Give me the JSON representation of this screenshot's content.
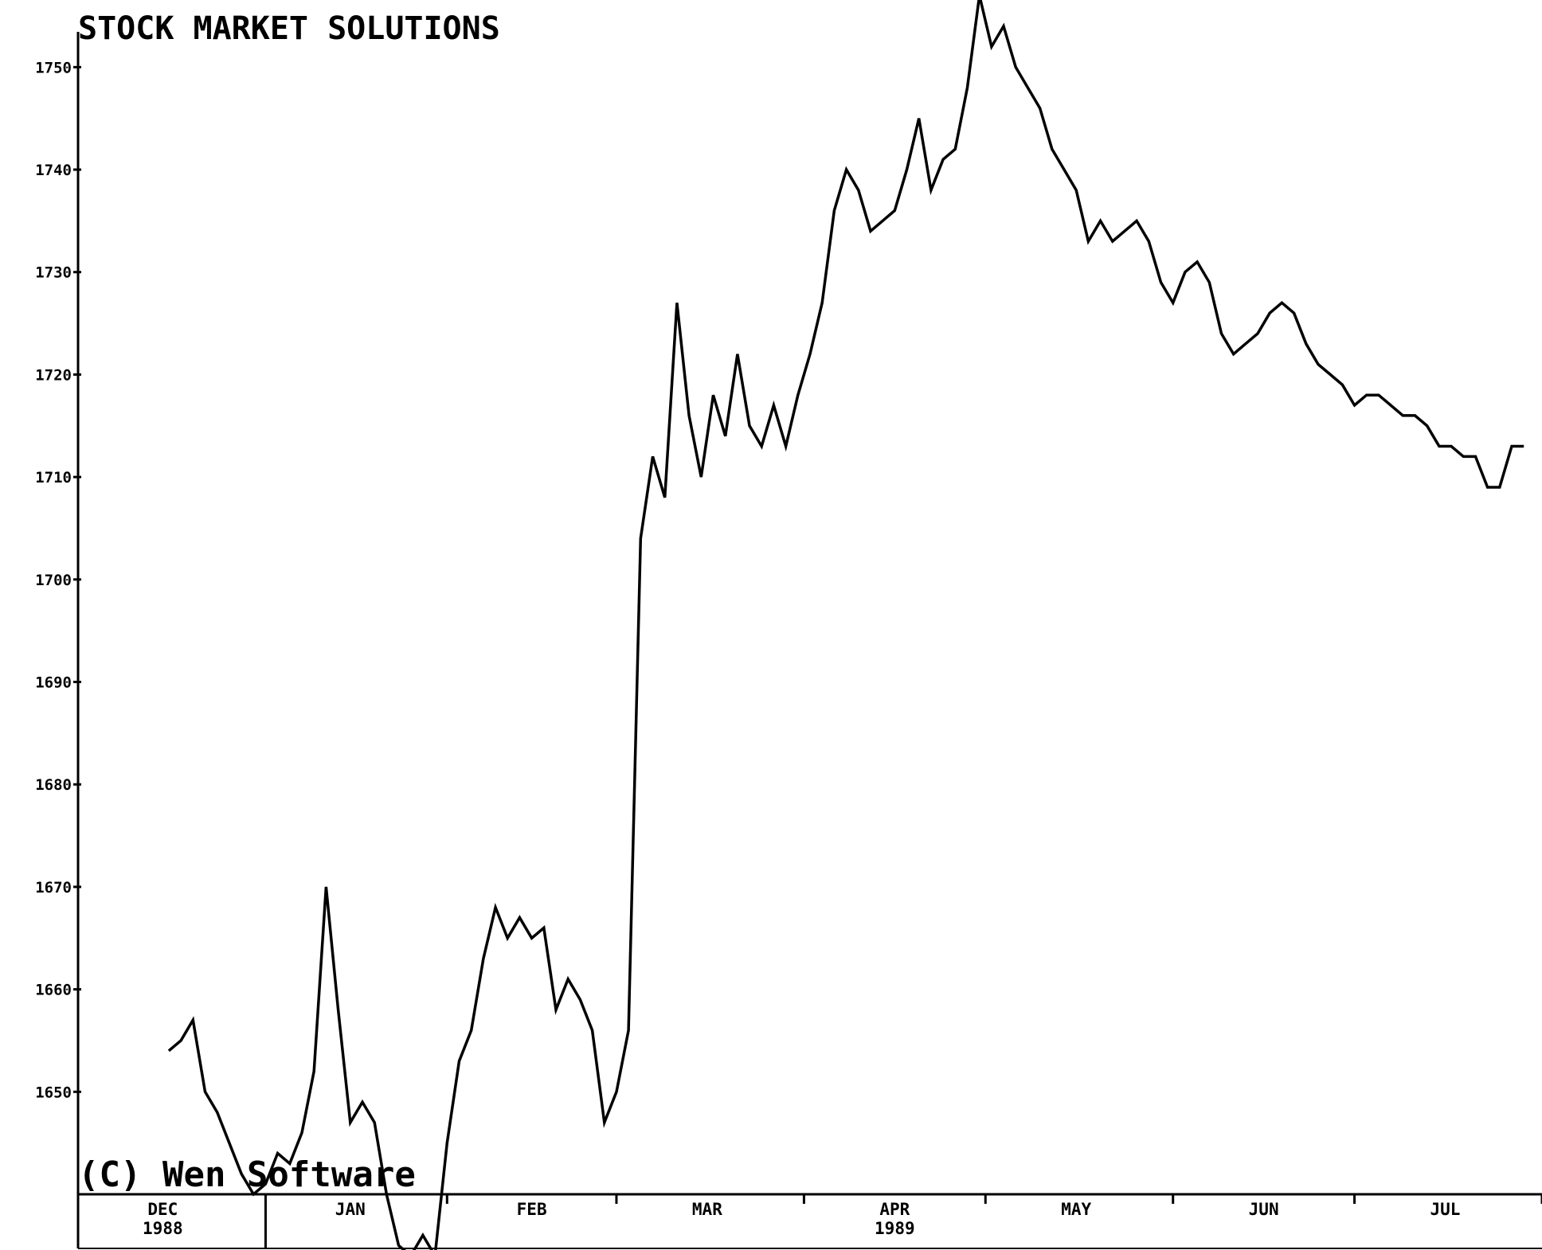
{
  "chart_data": {
    "type": "line",
    "title": "STOCK MARKET SOLUTIONS",
    "copyright": "(C) Wen Software",
    "ylim": [
      1640,
      1755
    ],
    "y_ticks": [
      {
        "value": 1650,
        "label": "1650"
      },
      {
        "value": 1660,
        "label": "1660"
      },
      {
        "value": 1670,
        "label": "1670"
      },
      {
        "value": 1680,
        "label": "1680"
      },
      {
        "value": 1690,
        "label": "1690"
      },
      {
        "value": 1700,
        "label": "1700"
      },
      {
        "value": 1710,
        "label": "1710"
      },
      {
        "value": 1720,
        "label": "1720"
      },
      {
        "value": 1730,
        "label": "1730"
      },
      {
        "value": 1740,
        "label": "1740"
      },
      {
        "value": 1750,
        "label": "1750"
      }
    ],
    "xlim": [
      "1988-12-01",
      "1989-07-31"
    ],
    "x_axis": {
      "months": [
        {
          "label": "DEC",
          "date": "1988-12-15"
        },
        {
          "label": "JAN",
          "date": "1989-01-15"
        },
        {
          "label": "FEB",
          "date": "1989-02-14"
        },
        {
          "label": "MAR",
          "date": "1989-03-15"
        },
        {
          "label": "APR",
          "date": "1989-04-15"
        },
        {
          "label": "MAY",
          "date": "1989-05-15"
        },
        {
          "label": "JUN",
          "date": "1989-06-15"
        },
        {
          "label": "JUL",
          "date": "1989-07-15"
        }
      ],
      "years": [
        {
          "label": "1988",
          "date": "1988-12-15"
        },
        {
          "label": "1989",
          "date": "1989-04-15"
        }
      ],
      "year_divider": "1989-01-01",
      "tick_dates": [
        "1989-01-31",
        "1989-02-28",
        "1989-03-31",
        "1989-04-30",
        "1989-05-31",
        "1989-06-30",
        "1989-07-31"
      ]
    },
    "grid": false,
    "series": [
      {
        "x": [
          "1988-12-16",
          "1988-12-18",
          "1988-12-20",
          "1988-12-22",
          "1988-12-24",
          "1988-12-26",
          "1988-12-28",
          "1988-12-30",
          "1989-01-01",
          "1989-01-03",
          "1989-01-05",
          "1989-01-07",
          "1989-01-09",
          "1989-01-11",
          "1989-01-13",
          "1989-01-15",
          "1989-01-17",
          "1989-01-19",
          "1989-01-21",
          "1989-01-23",
          "1989-01-25",
          "1989-01-27",
          "1989-01-29",
          "1989-01-31",
          "1989-02-02",
          "1989-02-04",
          "1989-02-06",
          "1989-02-08",
          "1989-02-10",
          "1989-02-12",
          "1989-02-14",
          "1989-02-16",
          "1989-02-18",
          "1989-02-20",
          "1989-02-22",
          "1989-02-24",
          "1989-02-26",
          "1989-02-28",
          "1989-03-02",
          "1989-03-04",
          "1989-03-06",
          "1989-03-08",
          "1989-03-10",
          "1989-03-12",
          "1989-03-14",
          "1989-03-16",
          "1989-03-18",
          "1989-03-20",
          "1989-03-22",
          "1989-03-24",
          "1989-03-26",
          "1989-03-28",
          "1989-03-30",
          "1989-04-01",
          "1989-04-03",
          "1989-04-05",
          "1989-04-07",
          "1989-04-09",
          "1989-04-11",
          "1989-04-13",
          "1989-04-15",
          "1989-04-17",
          "1989-04-19",
          "1989-04-21",
          "1989-04-23",
          "1989-04-25",
          "1989-04-27",
          "1989-04-29",
          "1989-05-01",
          "1989-05-03",
          "1989-05-05",
          "1989-05-07",
          "1989-05-09",
          "1989-05-11",
          "1989-05-13",
          "1989-05-15",
          "1989-05-17",
          "1989-05-19",
          "1989-05-21",
          "1989-05-23",
          "1989-05-25",
          "1989-05-27",
          "1989-05-29",
          "1989-05-31",
          "1989-06-02",
          "1989-06-04",
          "1989-06-06",
          "1989-06-08",
          "1989-06-10",
          "1989-06-12",
          "1989-06-14",
          "1989-06-16",
          "1989-06-18",
          "1989-06-20",
          "1989-06-22",
          "1989-06-24",
          "1989-06-26",
          "1989-06-28",
          "1989-06-30",
          "1989-07-02",
          "1989-07-04",
          "1989-07-06",
          "1989-07-08",
          "1989-07-10",
          "1989-07-12",
          "1989-07-14",
          "1989-07-16",
          "1989-07-18",
          "1989-07-20",
          "1989-07-22",
          "1989-07-24",
          "1989-07-26",
          "1989-07-28"
        ],
        "values": [
          1654,
          1655,
          1657,
          1650,
          1648,
          1645,
          1642,
          1640,
          1641,
          1644,
          1643,
          1646,
          1652,
          1670,
          1658,
          1647,
          1649,
          1647,
          1640,
          1635,
          1634,
          1636,
          1634,
          1645,
          1653,
          1656,
          1663,
          1668,
          1665,
          1667,
          1665,
          1666,
          1658,
          1661,
          1659,
          1656,
          1647,
          1650,
          1656,
          1704,
          1712,
          1708,
          1727,
          1716,
          1710,
          1718,
          1714,
          1722,
          1715,
          1713,
          1717,
          1713,
          1718,
          1722,
          1727,
          1736,
          1740,
          1738,
          1734,
          1735,
          1736,
          1740,
          1745,
          1738,
          1741,
          1742,
          1748,
          1757,
          1752,
          1754,
          1750,
          1748,
          1746,
          1742,
          1740,
          1738,
          1733,
          1735,
          1733,
          1734,
          1735,
          1733,
          1729,
          1727,
          1730,
          1731,
          1729,
          1724,
          1722,
          1723,
          1724,
          1726,
          1727,
          1726,
          1723,
          1721,
          1720,
          1719,
          1717,
          1718,
          1718,
          1717,
          1716,
          1716,
          1715,
          1713,
          1713,
          1712,
          1712,
          1709,
          1709,
          1713,
          1713
        ]
      }
    ]
  }
}
